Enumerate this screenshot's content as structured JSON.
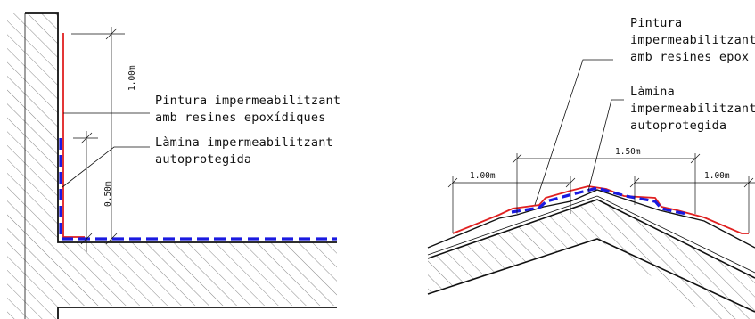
{
  "left_detail": {
    "label_paint": [
      "Pintura impermeabilitzant",
      "amb resines epoxídiques"
    ],
    "label_membrane": [
      "Làmina impermeabilitzant",
      "autoprotegida"
    ],
    "dim_paint_height": "1.00m",
    "dim_membrane_height": "0.50m"
  },
  "right_detail": {
    "label_paint": [
      "Pintura",
      "impermeabilitzant",
      "amb resines epox"
    ],
    "label_membrane": [
      "Làmina",
      "impermeabilitzant",
      "autoprotegida"
    ],
    "dim_left": "1.00m",
    "dim_center": "1.50m",
    "dim_right": "1.00m"
  },
  "colors": {
    "paint_line": "#e02020",
    "membrane_line": "#1a1ae0",
    "line": "#111111",
    "hatch": "#555555"
  }
}
